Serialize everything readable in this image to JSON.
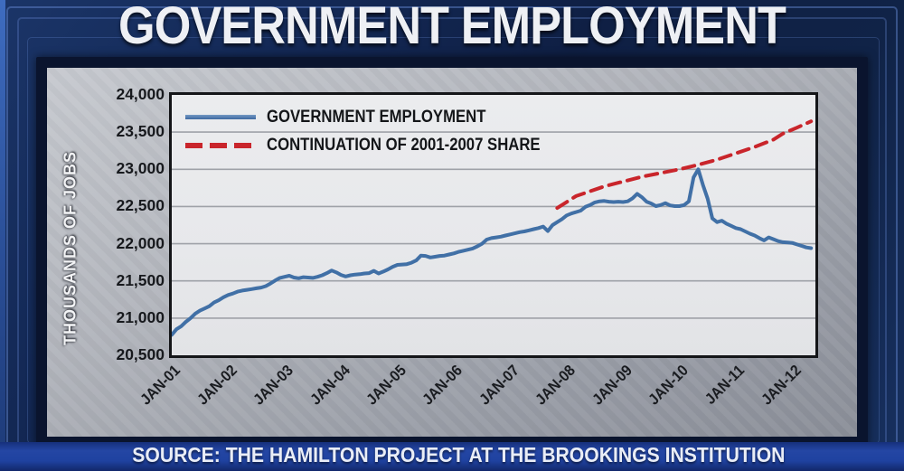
{
  "header": {
    "title": "GOVERNMENT EMPLOYMENT"
  },
  "footer": {
    "source": "SOURCE: THE HAMILTON PROJECT AT THE BROOKINGS INSTITUTION"
  },
  "colors": {
    "background_navy": "#0f1f44",
    "panel_gray": "#aaadb5",
    "plot_background": "#e9eaed",
    "gridline": "#9fa2a8",
    "employment_line": "#4170a6",
    "projection_line": "#c9252b",
    "axis_text": "#17191d",
    "source_bar_blue": "#1f42a0"
  },
  "chart_data": {
    "type": "line",
    "title": "GOVERNMENT EMPLOYMENT",
    "xlabel": "",
    "ylabel": "THOUSANDS OF JOBS",
    "ylim": [
      20500,
      24000
    ],
    "grid": true,
    "legend_position": "top-left",
    "ytick_values": [
      24000,
      23500,
      23000,
      22500,
      22000,
      21500,
      21000,
      20500
    ],
    "ytick_labels": [
      "24,000",
      "23,500",
      "23,000",
      "22,500",
      "22,000",
      "21,500",
      "21,000",
      "20,500"
    ],
    "xtick_labels": [
      "JAN-01",
      "JAN-02",
      "JAN-03",
      "JAN-04",
      "JAN-05",
      "JAN-06",
      "JAN-07",
      "JAN-08",
      "JAN-09",
      "JAN-10",
      "JAN-11",
      "JAN-12"
    ],
    "months_per_tick": 12,
    "x_months_total": 136,
    "series": [
      {
        "name": "GOVERNMENT EMPLOYMENT",
        "color": "#4170a6",
        "style": "solid",
        "x_start_month": 0,
        "x_step_months": 1,
        "values": [
          20775,
          20850,
          20890,
          20950,
          21000,
          21060,
          21100,
          21130,
          21160,
          21210,
          21240,
          21280,
          21310,
          21330,
          21355,
          21370,
          21380,
          21390,
          21400,
          21410,
          21430,
          21465,
          21505,
          21540,
          21555,
          21570,
          21545,
          21535,
          21550,
          21545,
          21540,
          21555,
          21575,
          21605,
          21640,
          21615,
          21580,
          21560,
          21575,
          21585,
          21590,
          21600,
          21605,
          21635,
          21600,
          21625,
          21655,
          21690,
          21715,
          21720,
          21725,
          21745,
          21775,
          21840,
          21835,
          21815,
          21825,
          21835,
          21840,
          21855,
          21870,
          21890,
          21905,
          21920,
          21935,
          21965,
          22000,
          22055,
          22075,
          22085,
          22095,
          22110,
          22125,
          22140,
          22155,
          22165,
          22180,
          22195,
          22210,
          22230,
          22170,
          22250,
          22290,
          22330,
          22380,
          22405,
          22425,
          22445,
          22495,
          22520,
          22555,
          22570,
          22575,
          22565,
          22560,
          22565,
          22560,
          22570,
          22610,
          22670,
          22625,
          22565,
          22540,
          22505,
          22520,
          22545,
          22515,
          22505,
          22505,
          22520,
          22570,
          22890,
          23000,
          22790,
          22605,
          22340,
          22290,
          22310,
          22270,
          22240,
          22210,
          22195,
          22165,
          22135,
          22110,
          22075,
          22045,
          22085,
          22060,
          22035,
          22020,
          22015,
          22010,
          21990,
          21970,
          21950,
          21940
        ]
      },
      {
        "name": "CONTINUATION OF 2001-2007 SHARE",
        "color": "#c9252b",
        "style": "dashed",
        "x_months": [
          82,
          86,
          92,
          100,
          108,
          112,
          116,
          124,
          128,
          130,
          133,
          136
        ],
        "values": [
          22480,
          22640,
          22770,
          22900,
          23000,
          23060,
          23130,
          23300,
          23400,
          23480,
          23560,
          23645
        ]
      }
    ]
  }
}
